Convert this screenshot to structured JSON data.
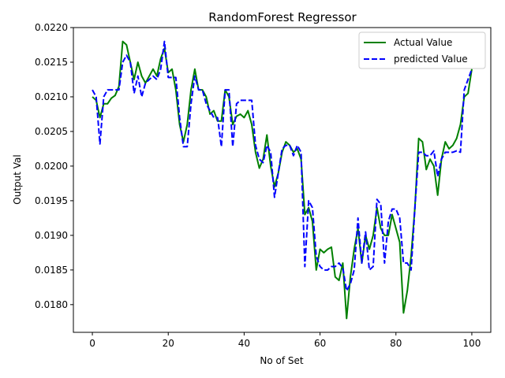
{
  "chart_data": {
    "type": "line",
    "title": "RandomForest Regressor",
    "xlabel": "No of Set",
    "ylabel": "Output Val",
    "xlim": [
      -5,
      105
    ],
    "ylim": [
      0.0176,
      0.022
    ],
    "xticks": [
      0,
      20,
      40,
      60,
      80,
      100
    ],
    "xtick_labels": [
      "0",
      "20",
      "40",
      "60",
      "80",
      "100"
    ],
    "yticks": [
      0.018,
      0.0185,
      0.019,
      0.0195,
      0.02,
      0.0205,
      0.021,
      0.0215,
      0.022
    ],
    "ytick_labels": [
      "0.0180",
      "0.0185",
      "0.0190",
      "0.0195",
      "0.0200",
      "0.0205",
      "0.0210",
      "0.0215",
      "0.0220"
    ],
    "grid": false,
    "legend_position": "top-right",
    "series": [
      {
        "name": "Actual Value",
        "color": "#008000",
        "style": "solid",
        "x": [
          0,
          1,
          2,
          3,
          4,
          5,
          6,
          7,
          8,
          9,
          10,
          11,
          12,
          13,
          14,
          15,
          16,
          17,
          18,
          19,
          20,
          21,
          22,
          23,
          24,
          25,
          26,
          27,
          28,
          29,
          30,
          31,
          32,
          33,
          34,
          35,
          36,
          37,
          38,
          39,
          40,
          41,
          42,
          43,
          44,
          45,
          46,
          47,
          48,
          49,
          50,
          51,
          52,
          53,
          54,
          55,
          56,
          57,
          58,
          59,
          60,
          61,
          62,
          63,
          64,
          65,
          66,
          67,
          68,
          69,
          70,
          71,
          72,
          73,
          74,
          75,
          76,
          77,
          78,
          79,
          80,
          81,
          82,
          83,
          84,
          85,
          86,
          87,
          88,
          89,
          90,
          91,
          92,
          93,
          94,
          95,
          96,
          97,
          98,
          99,
          100
        ],
        "values": [
          0.021,
          0.02095,
          0.0207,
          0.0209,
          0.0209,
          0.02098,
          0.02102,
          0.02115,
          0.0218,
          0.02175,
          0.0215,
          0.02125,
          0.0215,
          0.0213,
          0.0212,
          0.0213,
          0.0214,
          0.0213,
          0.02155,
          0.0217,
          0.02135,
          0.0214,
          0.0211,
          0.0206,
          0.02035,
          0.0206,
          0.0211,
          0.0214,
          0.0211,
          0.0211,
          0.021,
          0.02075,
          0.0208,
          0.02065,
          0.02065,
          0.0211,
          0.021,
          0.0206,
          0.02072,
          0.02075,
          0.0207,
          0.0208,
          0.0206,
          0.0202,
          0.01997,
          0.0201,
          0.02045,
          0.02,
          0.0197,
          0.0199,
          0.0202,
          0.02035,
          0.0203,
          0.0202,
          0.02025,
          0.0201,
          0.0193,
          0.0194,
          0.0192,
          0.0185,
          0.0188,
          0.01875,
          0.0188,
          0.01883,
          0.0184,
          0.01835,
          0.0186,
          0.0178,
          0.0184,
          0.0188,
          0.0191,
          0.0186,
          0.019,
          0.0188,
          0.019,
          0.0194,
          0.0191,
          0.019,
          0.019,
          0.0193,
          0.0191,
          0.0189,
          0.01788,
          0.0182,
          0.0187,
          0.0194,
          0.0204,
          0.02035,
          0.01995,
          0.0201,
          0.02,
          0.01958,
          0.0201,
          0.02035,
          0.02025,
          0.0203,
          0.0204,
          0.0206,
          0.021,
          0.02105,
          0.0214
        ]
      },
      {
        "name": "predicted Value",
        "color": "#0000ff",
        "style": "dashed",
        "x": [
          0,
          1,
          2,
          3,
          4,
          5,
          6,
          7,
          8,
          9,
          10,
          11,
          12,
          13,
          14,
          15,
          16,
          17,
          18,
          19,
          20,
          21,
          22,
          23,
          24,
          25,
          26,
          27,
          28,
          29,
          30,
          31,
          32,
          33,
          34,
          35,
          36,
          37,
          38,
          39,
          40,
          41,
          42,
          43,
          44,
          45,
          46,
          47,
          48,
          49,
          50,
          51,
          52,
          53,
          54,
          55,
          56,
          57,
          58,
          59,
          60,
          61,
          62,
          63,
          64,
          65,
          66,
          67,
          68,
          69,
          70,
          71,
          72,
          73,
          74,
          75,
          76,
          77,
          78,
          79,
          80,
          81,
          82,
          83,
          84,
          85,
          86,
          87,
          88,
          89,
          90,
          91,
          92,
          93,
          94,
          95,
          96,
          97,
          98,
          99,
          100
        ],
        "values": [
          0.0211,
          0.021,
          0.02032,
          0.021,
          0.0211,
          0.0211,
          0.0211,
          0.0211,
          0.0215,
          0.0216,
          0.0215,
          0.02105,
          0.0213,
          0.021,
          0.0212,
          0.02125,
          0.0213,
          0.02125,
          0.0214,
          0.0218,
          0.02128,
          0.02128,
          0.02128,
          0.0207,
          0.02028,
          0.02028,
          0.0209,
          0.0213,
          0.0211,
          0.0211,
          0.0209,
          0.0208,
          0.0207,
          0.0207,
          0.02028,
          0.0211,
          0.0211,
          0.02028,
          0.0209,
          0.02095,
          0.02095,
          0.02095,
          0.02095,
          0.0203,
          0.0201,
          0.02005,
          0.0203,
          0.0202,
          0.01955,
          0.0199,
          0.02025,
          0.0203,
          0.0203,
          0.02015,
          0.0203,
          0.0202,
          0.01855,
          0.0195,
          0.0194,
          0.0187,
          0.01855,
          0.0185,
          0.0185,
          0.01855,
          0.01855,
          0.0186,
          0.01853,
          0.0182,
          0.0183,
          0.0185,
          0.01925,
          0.0186,
          0.01905,
          0.0185,
          0.01855,
          0.01952,
          0.01945,
          0.0186,
          0.0192,
          0.01938,
          0.01938,
          0.01925,
          0.0186,
          0.0186,
          0.0185,
          0.0194,
          0.0202,
          0.0202,
          0.02015,
          0.02015,
          0.02022,
          0.01985,
          0.0201,
          0.0202,
          0.0202,
          0.0202,
          0.02022,
          0.0202,
          0.0211,
          0.02125,
          0.0214
        ]
      }
    ]
  }
}
